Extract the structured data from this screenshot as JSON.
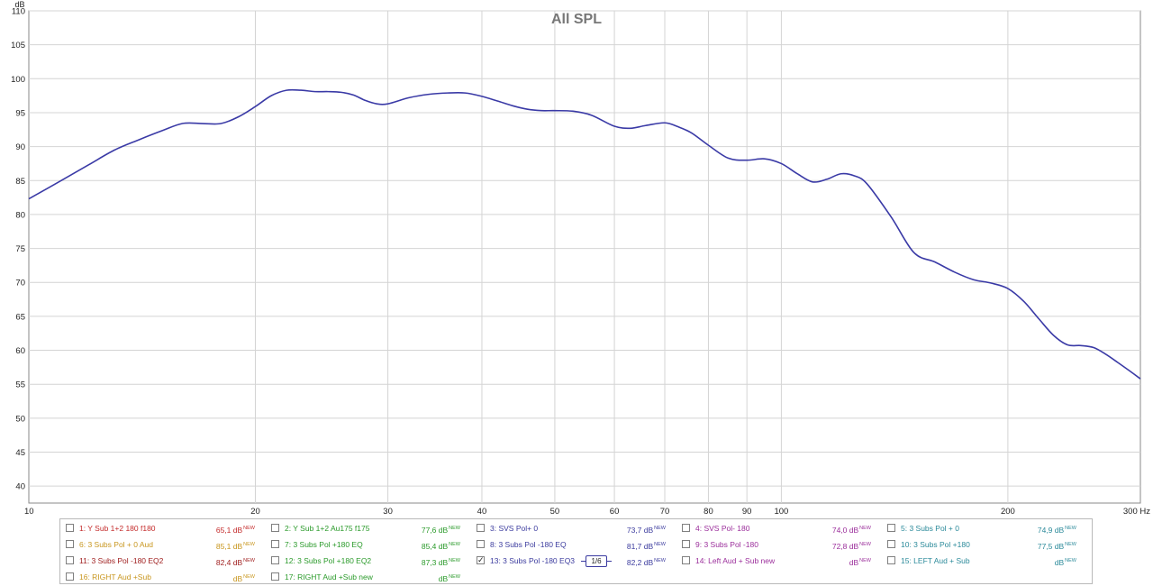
{
  "chart_data": {
    "type": "line",
    "title": "All SPL",
    "ylabel": "dB",
    "xunit": "Hz",
    "xscale": "log",
    "xlim": [
      10,
      300
    ],
    "ylim": [
      37.5,
      110
    ],
    "grid": true,
    "y_ticks": [
      "40",
      "45",
      "50",
      "55",
      "60",
      "65",
      "70",
      "75",
      "80",
      "85",
      "90",
      "95",
      "100",
      "105",
      "110"
    ],
    "x_ticks": [
      {
        "value": 10,
        "label": "10"
      },
      {
        "value": 20,
        "label": "20"
      },
      {
        "value": 30,
        "label": "30"
      },
      {
        "value": 40,
        "label": "40"
      },
      {
        "value": 50,
        "label": "50"
      },
      {
        "value": 60,
        "label": "60"
      },
      {
        "value": 70,
        "label": "70"
      },
      {
        "value": 80,
        "label": "80"
      },
      {
        "value": 90,
        "label": "90"
      },
      {
        "value": 100,
        "label": "100"
      },
      {
        "value": 200,
        "label": "200"
      },
      {
        "value": 300,
        "label": "300 Hz"
      }
    ],
    "series": [
      {
        "name": "13: 3 Subs Pol -180 EQ3",
        "color": "#3a3aa6",
        "x": [
          10,
          11,
          12,
          13,
          14,
          15,
          16,
          17,
          18,
          19,
          20,
          21,
          22,
          23,
          24,
          25,
          26,
          27,
          28,
          29,
          30,
          32,
          34,
          36,
          38,
          40,
          42,
          44,
          46,
          48,
          50,
          53,
          56,
          60,
          63,
          66,
          70,
          73,
          76,
          80,
          85,
          90,
          95,
          100,
          105,
          110,
          115,
          120,
          125,
          130,
          140,
          150,
          160,
          170,
          180,
          190,
          200,
          210,
          220,
          230,
          240,
          250,
          260,
          270,
          280,
          290,
          300
        ],
        "y": [
          82.3,
          84.9,
          87.3,
          89.5,
          91.0,
          92.3,
          93.4,
          93.4,
          93.4,
          94.4,
          95.9,
          97.5,
          98.3,
          98.3,
          98.1,
          98.1,
          98.0,
          97.6,
          96.8,
          96.3,
          96.3,
          97.2,
          97.7,
          97.9,
          97.9,
          97.4,
          96.7,
          96.0,
          95.5,
          95.3,
          95.3,
          95.2,
          94.6,
          93.0,
          92.7,
          93.1,
          93.5,
          92.9,
          92.0,
          90.2,
          88.3,
          88.0,
          88.2,
          87.5,
          86.0,
          84.8,
          85.2,
          86.0,
          85.7,
          84.5,
          79.6,
          74.4,
          73.0,
          71.5,
          70.4,
          69.9,
          69.1,
          67.2,
          64.6,
          62.2,
          60.8,
          60.7,
          60.4,
          59.4,
          58.2,
          57.0,
          55.8
        ]
      }
    ]
  },
  "legend": {
    "value_superscript": "NEW",
    "smoothing_label": "1/6",
    "items": [
      {
        "name": "1: Y Sub 1+2 180 f180",
        "value": "65,1 dB",
        "color": "#c42b2b",
        "checked": false
      },
      {
        "name": "2: Y Sub 1+2  Au175 f175",
        "value": "77,6 dB",
        "color": "#2a9a2a",
        "checked": false
      },
      {
        "name": "3: SVS Pol+ 0",
        "value": "73,7 dB",
        "color": "#3b3b9e",
        "checked": false
      },
      {
        "name": "4: SVS Pol- 180",
        "value": "74,0 dB",
        "color": "#9b2e9b",
        "checked": false
      },
      {
        "name": "5: 3 Subs Pol + 0",
        "value": "74,9 dB",
        "color": "#2b8a9a",
        "checked": false
      },
      {
        "name": "6: 3 Subs Pol + 0 Aud",
        "value": "85,1 dB",
        "color": "#c8961e",
        "checked": false
      },
      {
        "name": "7: 3 Subs Pol +180 EQ",
        "value": "85,4 dB",
        "color": "#2a9a2a",
        "checked": false
      },
      {
        "name": "8: 3 Subs Pol -180 EQ",
        "value": "81,7 dB",
        "color": "#3b3b9e",
        "checked": false
      },
      {
        "name": "9: 3 Subs Pol -180",
        "value": "72,8 dB",
        "color": "#9b2e9b",
        "checked": false
      },
      {
        "name": "10: 3 Subs Pol +180",
        "value": "77,5 dB",
        "color": "#2b8a9a",
        "checked": false
      },
      {
        "name": "11: 3 Subs Pol -180 EQ2",
        "value": "82,4 dB",
        "color": "#a02020",
        "checked": false
      },
      {
        "name": "12: 3 Subs Pol +180 EQ2",
        "value": "87,3 dB",
        "color": "#2a9a2a",
        "checked": false
      },
      {
        "name": "13: 3 Subs Pol -180 EQ3",
        "value": "82,2 dB",
        "color": "#3b3b9e",
        "checked": true
      },
      {
        "name": "14: Left Aud + Sub new",
        "value": "dB",
        "color": "#9b2e9b",
        "checked": false
      },
      {
        "name": "15: LEFT Aud + Sub",
        "value": "dB",
        "color": "#2b8a9a",
        "checked": false
      },
      {
        "name": "16: RIGHT Aud +Sub",
        "value": "dB",
        "color": "#c8961e",
        "checked": false
      },
      {
        "name": "17: RIGHT Aud +Sub new",
        "value": "dB",
        "color": "#2a9a2a",
        "checked": false
      }
    ]
  }
}
